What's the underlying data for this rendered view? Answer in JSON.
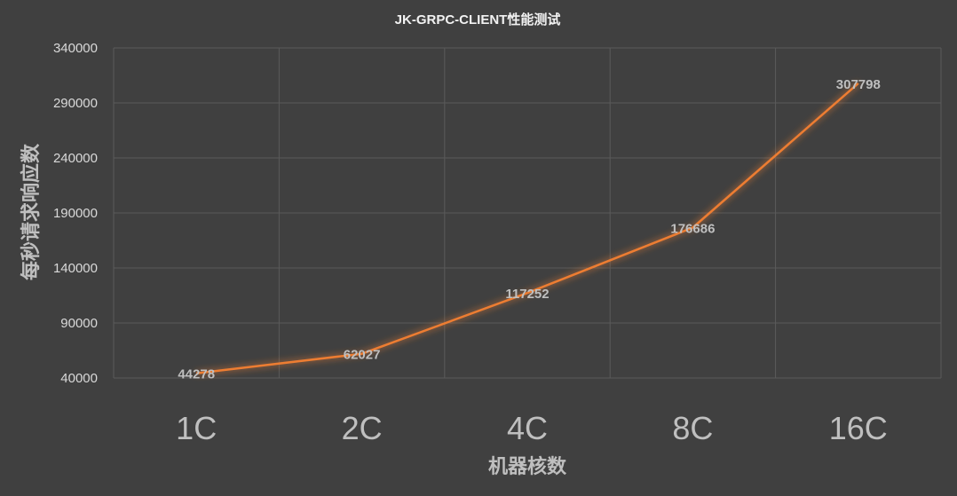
{
  "chart_data": {
    "type": "line",
    "title": "JK-GRPC-CLIENT性能测试",
    "xlabel": "机器核数",
    "ylabel": "每秒请求响应数",
    "categories": [
      "1C",
      "2C",
      "4C",
      "8C",
      "16C"
    ],
    "series": [
      {
        "values": [
          44278,
          62027,
          117252,
          176686,
          307798
        ]
      }
    ],
    "ylim": [
      40000,
      340000
    ],
    "yticks": [
      40000,
      90000,
      140000,
      190000,
      240000,
      290000,
      340000
    ],
    "ytick_labels": [
      "40000",
      "90000",
      "140000",
      "190000",
      "240000",
      "290000",
      "340000"
    ],
    "data_labels": [
      "44278",
      "62027",
      "117252",
      "176686",
      "307798"
    ],
    "grid": true,
    "legend": "none",
    "colors": {
      "background": "#404040",
      "line": "#ed7d31",
      "grid": "#5a5a5a"
    }
  }
}
